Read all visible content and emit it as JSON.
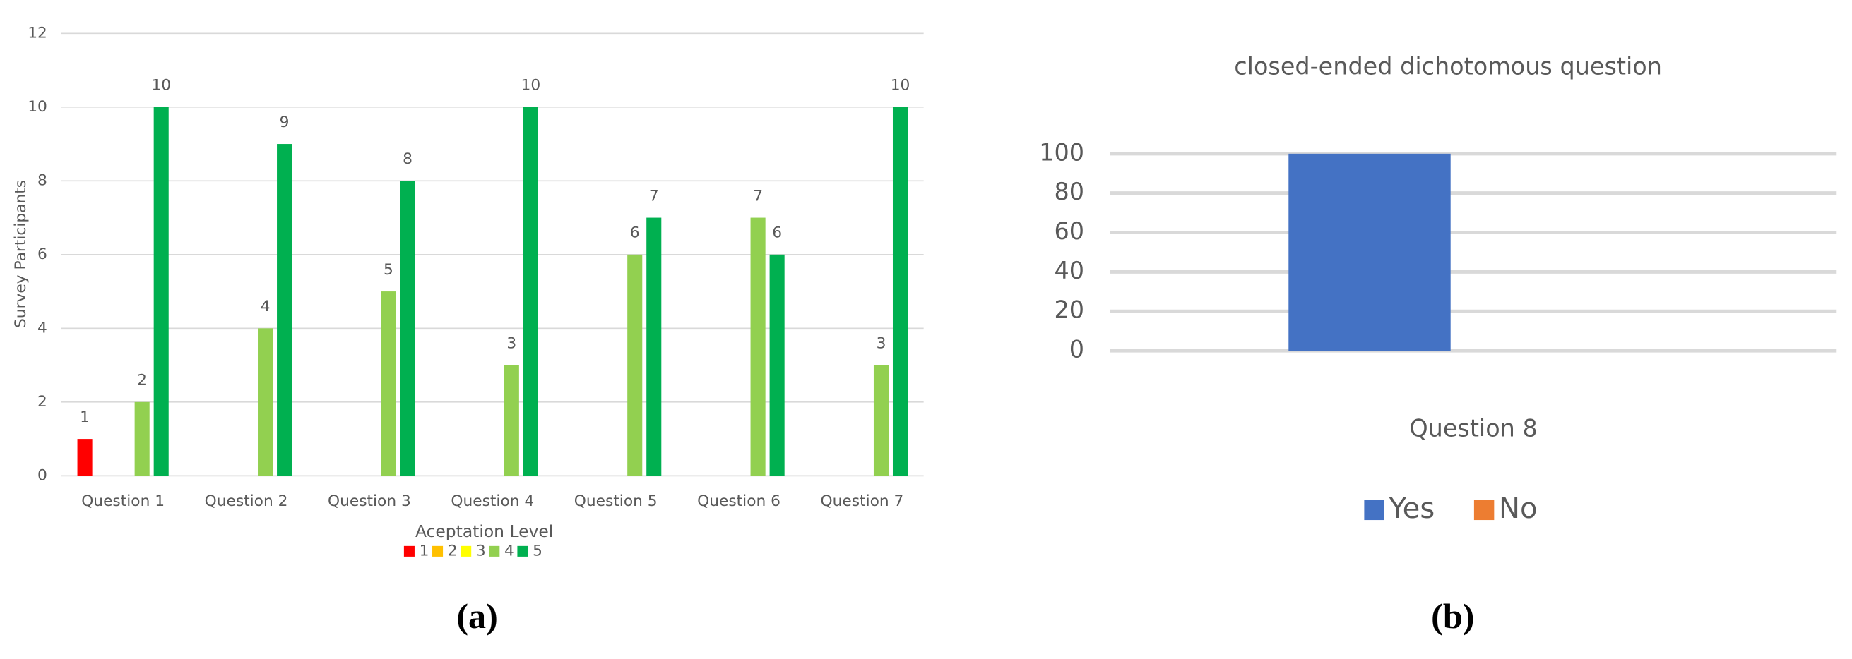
{
  "chart_data": [
    {
      "type": "bar",
      "caption": "(a)",
      "y_label": "Survey Participants",
      "x_label": "Aceptation Level",
      "categories": [
        "Question 1",
        "Question 2",
        "Question 3",
        "Question 4",
        "Question 5",
        "Question 6",
        "Question 7"
      ],
      "series": [
        {
          "name": "1",
          "color": "#ff0000",
          "values": [
            1,
            null,
            null,
            null,
            null,
            null,
            null
          ]
        },
        {
          "name": "2",
          "color": "#ffc000",
          "values": [
            null,
            null,
            null,
            null,
            null,
            null,
            null
          ]
        },
        {
          "name": "3",
          "color": "#ffff00",
          "values": [
            null,
            null,
            null,
            null,
            null,
            null,
            null
          ]
        },
        {
          "name": "4",
          "color": "#92d050",
          "values": [
            2,
            4,
            5,
            3,
            6,
            7,
            3
          ]
        },
        {
          "name": "5",
          "color": "#00b050",
          "values": [
            10,
            9,
            8,
            10,
            7,
            6,
            10
          ]
        }
      ],
      "ylim": [
        0,
        12
      ],
      "yticks": [
        0,
        2,
        4,
        6,
        8,
        10,
        12
      ],
      "grid": true,
      "data_labels": true,
      "legend": "bottom"
    },
    {
      "type": "bar",
      "caption": "(b)",
      "title": "closed-ended dichotomous question",
      "categories": [
        "Question 8"
      ],
      "series": [
        {
          "name": "Yes",
          "color": "#4472c4",
          "values": [
            100
          ]
        },
        {
          "name": "No",
          "color": "#ed7d31",
          "values": [
            0
          ]
        }
      ],
      "ylim": [
        0,
        100
      ],
      "yticks": [
        0,
        20,
        40,
        60,
        80,
        100
      ],
      "grid": true,
      "data_labels": false,
      "legend": "bottom"
    }
  ]
}
